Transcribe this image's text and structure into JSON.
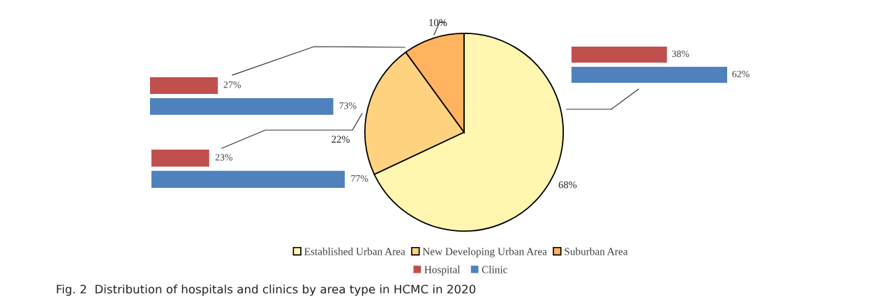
{
  "chart_data": [
    {
      "type": "pie",
      "categories": [
        "Established Urban Area",
        "New Developing Urban Area",
        "Suburban Area"
      ],
      "values": [
        68,
        22,
        10
      ],
      "value_labels": [
        "68%",
        "22%",
        "10%"
      ],
      "colors": [
        "#fff6b0",
        "#ffd280",
        "#ffb35e"
      ],
      "legend": "bottom",
      "annotations": [
        "Fig. 2  Distribution of hospitals and clinics by area type in HCMC in 2020"
      ]
    },
    {
      "type": "bar",
      "orientation": "horizontal",
      "categories": [
        null
      ],
      "legend": "bottom",
      "series": [
        {
          "name": "Hospital",
          "color": "#c0504d",
          "values": [
            27
          ],
          "value_labels": [
            "27%"
          ]
        },
        {
          "name": "Clinic",
          "color": "#4f81bd",
          "values": [
            73
          ],
          "value_labels": [
            "73%"
          ]
        }
      ]
    },
    {
      "type": "bar",
      "orientation": "horizontal",
      "categories": [
        null
      ],
      "series": [
        {
          "color": "#c0504d",
          "values": [
            38
          ],
          "value_labels": [
            "38%"
          ]
        },
        {
          "color": "#4f81bd",
          "values": [
            62
          ],
          "value_labels": [
            "62%"
          ]
        }
      ]
    },
    {
      "type": "bar",
      "orientation": "horizontal",
      "categories": [
        null
      ],
      "series": [
        {
          "color": "#c0504d",
          "values": [
            23
          ],
          "value_labels": [
            "23%"
          ]
        },
        {
          "color": "#4f81bd",
          "values": [
            77
          ],
          "value_labels": [
            "77%"
          ]
        }
      ]
    }
  ]
}
